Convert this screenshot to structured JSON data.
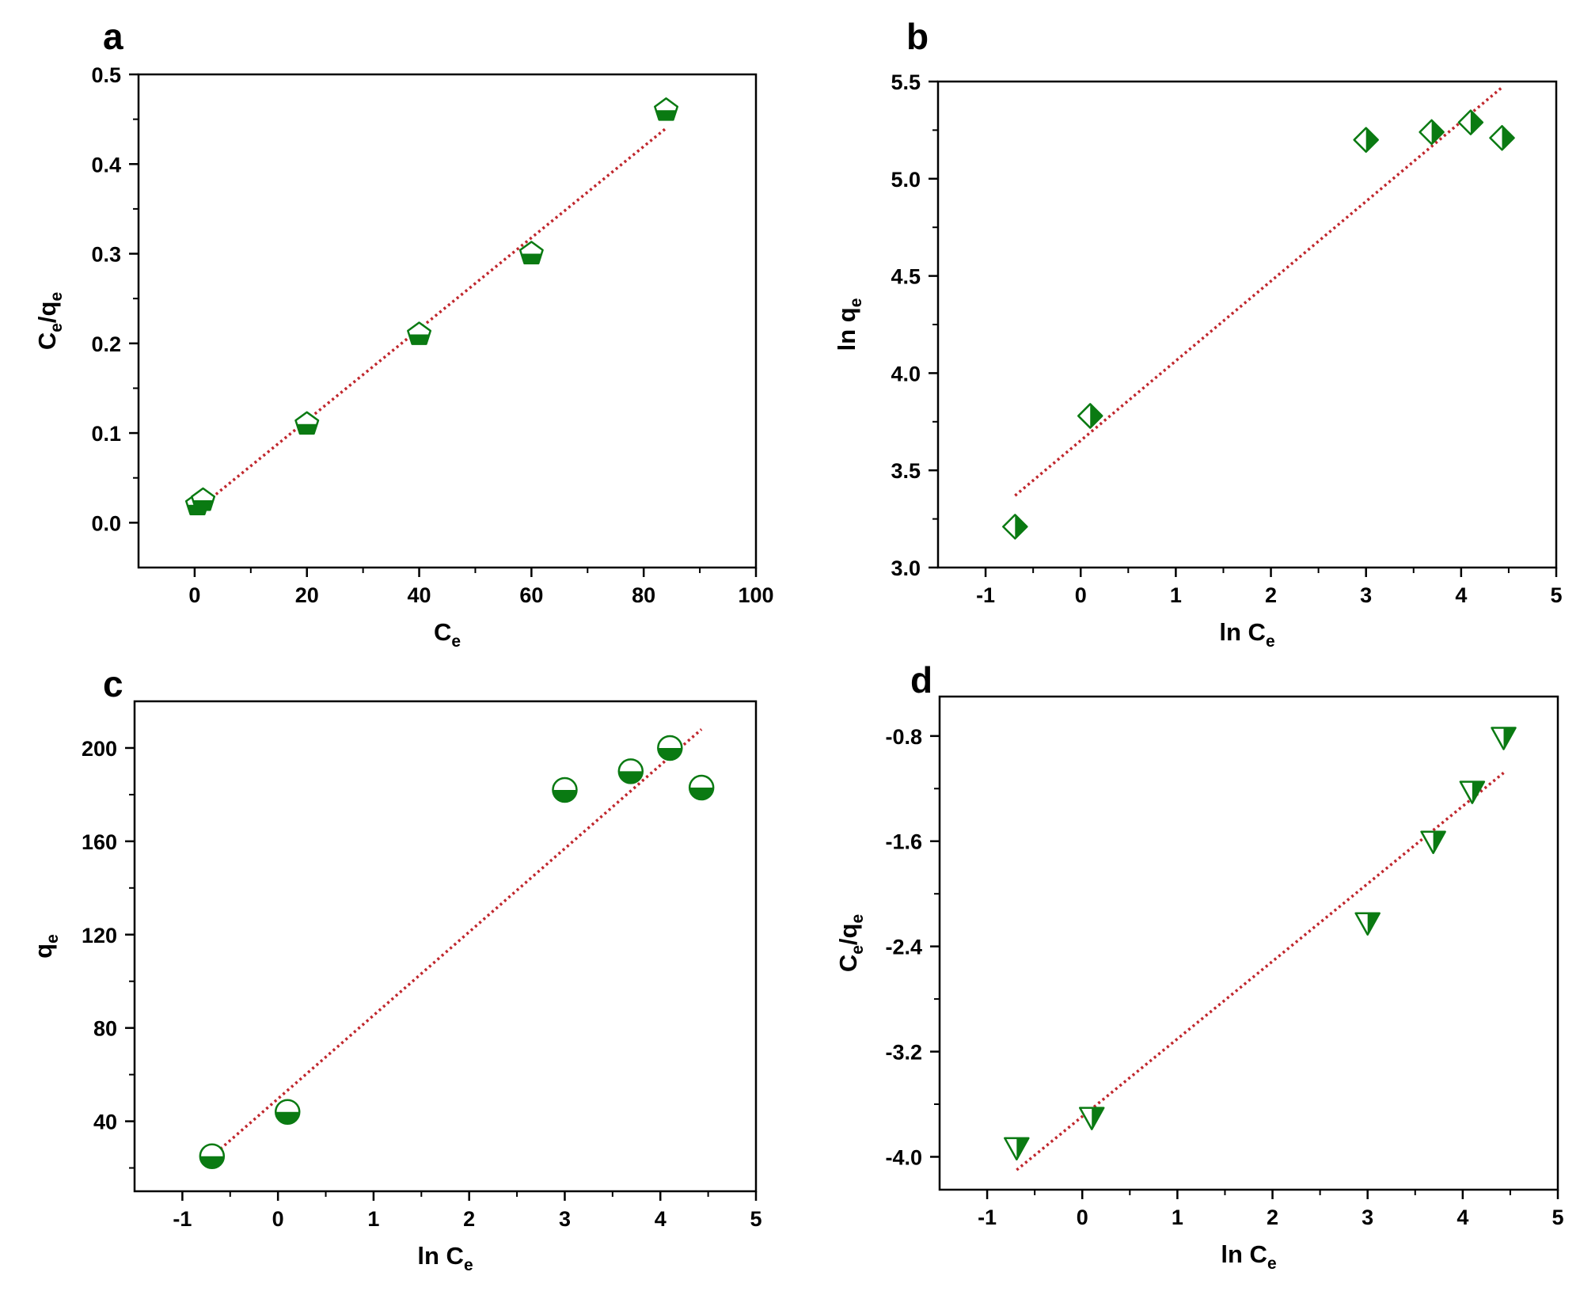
{
  "colors": {
    "marker": "#0a7a12",
    "fit_line": "#c0272d",
    "axis": "#000000"
  },
  "chart_data": [
    {
      "panel": "a",
      "type": "scatter",
      "marker": "pentagon",
      "xlabel": {
        "main": "C",
        "sub": "e",
        "rest": ""
      },
      "ylabel": {
        "parts": [
          [
            "C",
            ""
          ],
          [
            "e",
            "sub"
          ],
          [
            "/q",
            ""
          ],
          [
            "e",
            "sub"
          ]
        ]
      },
      "xlim": [
        -10,
        100
      ],
      "ylim": [
        -0.05,
        0.5
      ],
      "xticks": [
        "0",
        "20",
        "40",
        "60",
        "80",
        "100"
      ],
      "yticks": [
        "0.0",
        "0.1",
        "0.2",
        "0.3",
        "0.4",
        "0.5"
      ],
      "points": [
        [
          0.5,
          0.02
        ],
        [
          1.5,
          0.025
        ],
        [
          20,
          0.11
        ],
        [
          40,
          0.21
        ],
        [
          60,
          0.3
        ],
        [
          84,
          0.46
        ]
      ],
      "fit": [
        [
          1.5,
          0.02
        ],
        [
          84,
          0.44
        ]
      ]
    },
    {
      "panel": "b",
      "type": "scatter",
      "marker": "diamond",
      "xlabel": {
        "main": "ln C",
        "sub": "e"
      },
      "ylabel": {
        "parts": [
          [
            "ln q",
            ""
          ],
          [
            "e",
            "sub"
          ]
        ]
      },
      "xlim": [
        -1.5,
        5
      ],
      "ylim": [
        3.0,
        5.5
      ],
      "xticks": [
        "-1",
        "0",
        "1",
        "2",
        "3",
        "4",
        "5"
      ],
      "yticks": [
        "3.0",
        "3.5",
        "4.0",
        "4.5",
        "5.0",
        "5.5"
      ],
      "points": [
        [
          -0.69,
          3.21
        ],
        [
          0.1,
          3.78
        ],
        [
          3.0,
          5.2
        ],
        [
          3.69,
          5.24
        ],
        [
          4.1,
          5.29
        ],
        [
          4.43,
          5.21
        ]
      ],
      "fit": [
        [
          -0.69,
          3.37
        ],
        [
          4.43,
          5.47
        ]
      ]
    },
    {
      "panel": "c",
      "type": "scatter",
      "marker": "circle",
      "xlabel": {
        "main": "ln C",
        "sub": "e"
      },
      "ylabel": {
        "parts": [
          [
            "q",
            ""
          ],
          [
            "e",
            "sub"
          ]
        ]
      },
      "xlim": [
        -1.5,
        5
      ],
      "ylim": [
        10,
        220
      ],
      "xticks": [
        "-1",
        "0",
        "1",
        "2",
        "3",
        "4",
        "5"
      ],
      "yticks": [
        "40",
        "80",
        "120",
        "160",
        "200"
      ],
      "points": [
        [
          -0.69,
          25
        ],
        [
          0.1,
          44
        ],
        [
          3.0,
          182
        ],
        [
          3.69,
          190
        ],
        [
          4.1,
          200
        ],
        [
          4.43,
          183
        ]
      ],
      "fit": [
        [
          -0.69,
          25
        ],
        [
          4.43,
          208
        ]
      ]
    },
    {
      "panel": "d",
      "type": "scatter",
      "marker": "triangle-down",
      "xlabel": {
        "main": "ln C",
        "sub": "e"
      },
      "ylabel": {
        "parts": [
          [
            "C",
            ""
          ],
          [
            "e",
            "sub"
          ],
          [
            "/q",
            ""
          ],
          [
            "e",
            "sub"
          ]
        ]
      },
      "xlim": [
        -1.5,
        5
      ],
      "ylim": [
        -4.25,
        -0.5
      ],
      "xticks": [
        "-1",
        "0",
        "1",
        "2",
        "3",
        "4",
        "5"
      ],
      "yticks": [
        "-0.8",
        "-1.6",
        "-2.4",
        "-3.2",
        "-4.0"
      ],
      "points": [
        [
          -0.69,
          -3.93
        ],
        [
          0.1,
          -3.7
        ],
        [
          3.0,
          -2.22
        ],
        [
          3.69,
          -1.6
        ],
        [
          4.1,
          -1.22
        ],
        [
          4.43,
          -0.81
        ]
      ],
      "fit": [
        [
          -0.69,
          -4.1
        ],
        [
          4.43,
          -1.08
        ]
      ]
    }
  ]
}
